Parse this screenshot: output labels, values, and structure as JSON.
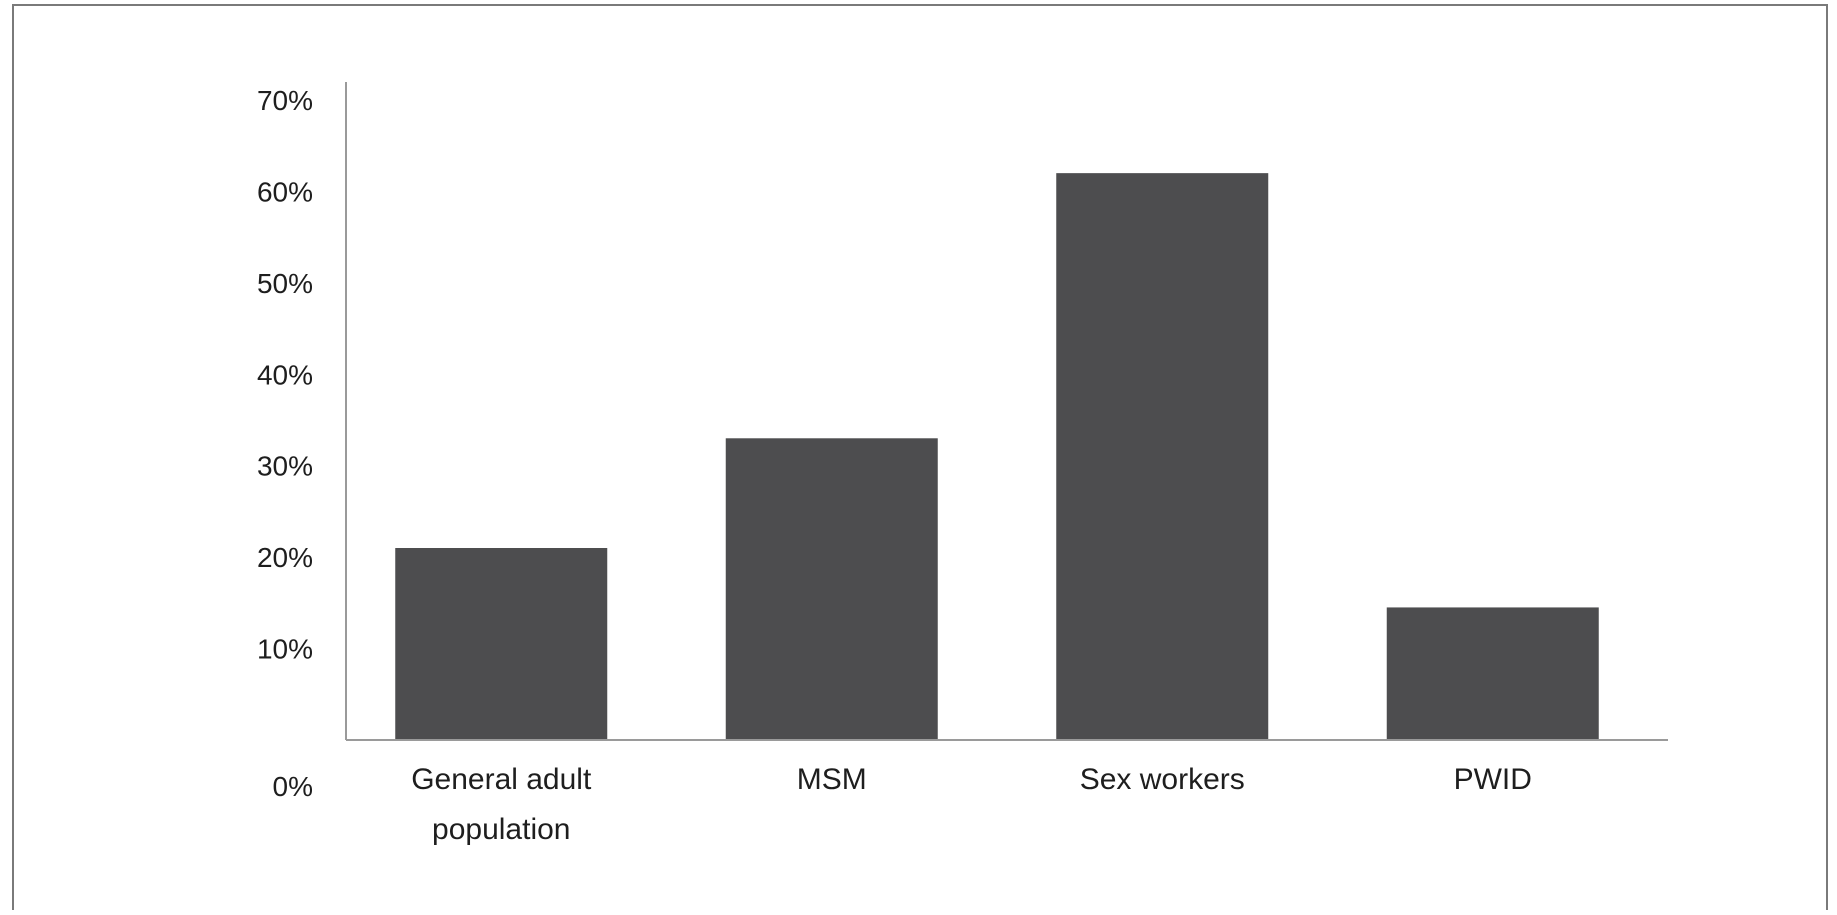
{
  "chart_data": {
    "type": "bar",
    "categories": [
      [
        "General adult",
        "population"
      ],
      [
        "MSM"
      ],
      [
        "Sex workers"
      ],
      [
        "PWID"
      ]
    ],
    "values": [
      21,
      33,
      62,
      14.5
    ],
    "ylim": [
      0,
      70
    ],
    "yticks": [
      0,
      10,
      20,
      30,
      40,
      50,
      60,
      70
    ],
    "ytick_format": "%",
    "bar_color": "#4d4d4f",
    "axis_color": "#9a9a9a",
    "grid": false,
    "legend": "none"
  }
}
